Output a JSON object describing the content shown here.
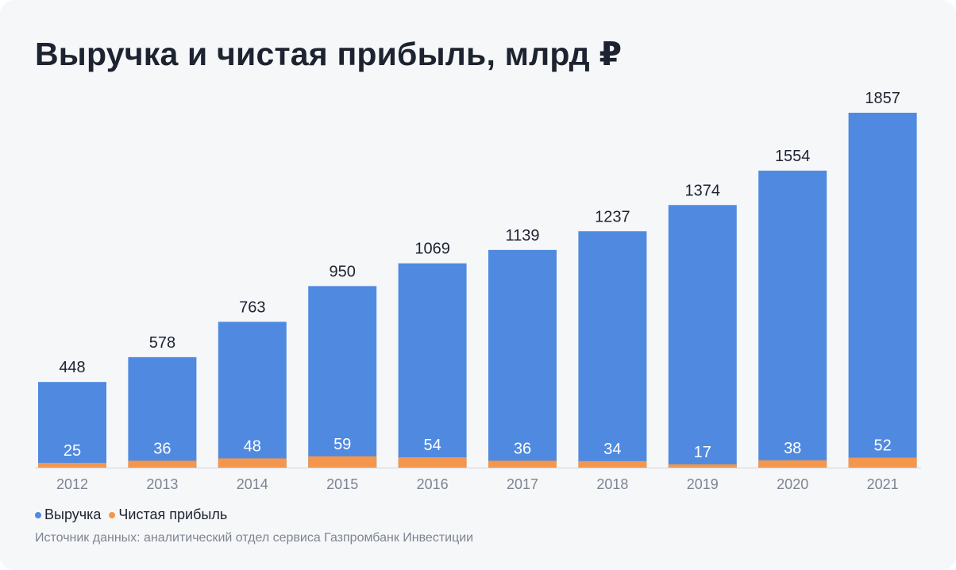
{
  "title": "Выручка и чистая прибыль, млрд ₽",
  "source": "Источник данных: аналитический отдел сервиса Газпромбанк Инвестиции",
  "colors": {
    "revenue": "#4f8ae0",
    "profit": "#f4974c",
    "text": "#1d2330",
    "muted": "#7d8491",
    "axis": "#d0d4da"
  },
  "chart_data": {
    "type": "bar",
    "categories": [
      "2012",
      "2013",
      "2014",
      "2015",
      "2016",
      "2017",
      "2018",
      "2019",
      "2020",
      "2021"
    ],
    "series": [
      {
        "name": "Выручка",
        "values": [
          448,
          578,
          763,
          950,
          1069,
          1139,
          1237,
          1374,
          1554,
          1857
        ]
      },
      {
        "name": "Чистая прибыль",
        "values": [
          25,
          36,
          48,
          59,
          54,
          36,
          34,
          17,
          38,
          52
        ]
      }
    ],
    "legend": "bottom-left",
    "grid": false
  }
}
